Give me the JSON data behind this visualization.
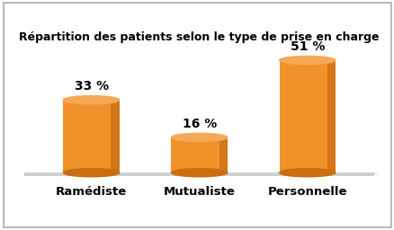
{
  "title": "Répartition des patients selon le type de prise en charge",
  "categories": [
    "Ramédiste",
    "Mutualiste",
    "Personnelle"
  ],
  "values": [
    33,
    16,
    51
  ],
  "labels": [
    "33 %",
    "16 %",
    "51 %"
  ],
  "bar_color_body": "#F0922A",
  "bar_color_right": "#D4771A",
  "bar_color_top_ellipse": "#F5A855",
  "bar_color_bottom_ellipse": "#C96F10",
  "background_color": "#FFFFFF",
  "border_color": "#AAAAAA",
  "floor_top_color": "#E8E8E8",
  "floor_side_color": "#D0D0D0",
  "title_fontsize": 9,
  "label_fontsize": 10,
  "category_fontsize": 9.5
}
